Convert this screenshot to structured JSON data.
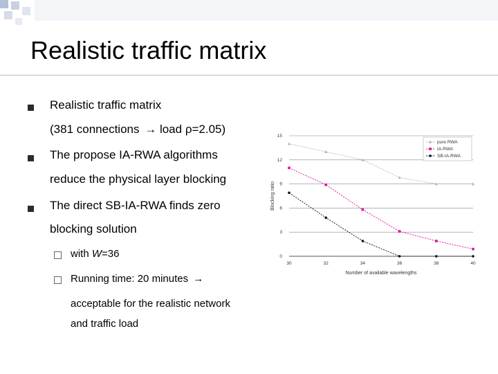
{
  "slide": {
    "title": "Realistic traffic matrix",
    "bullets": [
      {
        "text": "Realistic traffic matrix"
      },
      {
        "text_before": "(381 connections",
        "arrow": "→",
        "text_after": "load ρ=2.05)"
      },
      {
        "text": "The propose IA-RWA algorithms"
      },
      {
        "text": "reduce the physical layer blocking"
      },
      {
        "text": "The direct SB-IA-RWA finds zero"
      },
      {
        "text": "blocking solution"
      }
    ],
    "sub_bullets": [
      {
        "text_before": "with ",
        "italic": "W",
        "text_after": "=36"
      },
      {
        "text_before": "Running time: 20 minutes",
        "arrow": "→"
      },
      {
        "text": "acceptable for the realistic network"
      },
      {
        "text": "and traffic load"
      }
    ]
  },
  "chart_data": {
    "type": "line",
    "x": [
      30,
      32,
      34,
      36,
      38,
      40
    ],
    "x_ticks": [
      "30",
      "32",
      "34",
      "36",
      "38",
      "40"
    ],
    "y_ticks": [
      "0",
      "3",
      "6",
      "9",
      "12",
      "15"
    ],
    "xlabel": "Number of available wavelengths",
    "ylabel": "Blocking ratio",
    "xlim": [
      30,
      40
    ],
    "ylim": [
      0,
      15
    ],
    "grid": "horizontal",
    "legend_position": "top-right",
    "series": [
      {
        "name": "pure RWA",
        "values": [
          14.0,
          13.0,
          12.0,
          9.8,
          9.0,
          9.0
        ],
        "color": "#b8b8b8",
        "marker": "triangle"
      },
      {
        "name": "IA-RWA",
        "values": [
          11.0,
          8.9,
          5.8,
          3.1,
          1.9,
          0.9
        ],
        "color": "#e0169b",
        "marker": "square"
      },
      {
        "name": "SB-IA-RWA",
        "values": [
          7.9,
          4.8,
          1.9,
          0.0,
          0.0,
          0.0
        ],
        "color": "#101028",
        "marker": "circle"
      }
    ]
  },
  "colors": {
    "deco_square": "#b4c0d8",
    "rule": "#b8b8b8",
    "bullet": "#2b2b2b"
  }
}
